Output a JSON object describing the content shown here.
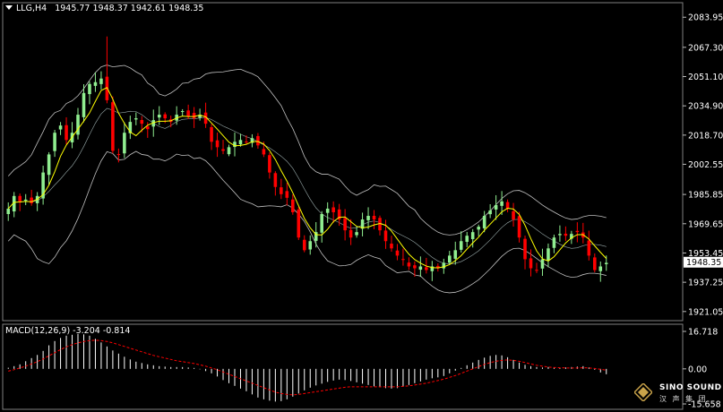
{
  "header": {
    "symbol": "LLG,H4",
    "ohlc": "1945.77 1948.37 1942.61 1948.35"
  },
  "macd": {
    "label": "MACD(12,26,9) -3.204 -0.814",
    "axis_ticks": [
      "16.718",
      "0.00",
      "-15.658"
    ]
  },
  "logo": {
    "name": "SINO SOUND",
    "subtitle": "汉 声 集 团"
  },
  "colors": {
    "background": "#000000",
    "bull": "#90EE90",
    "bear": "#FF0000",
    "ma": "#FFFF00",
    "bands": "#C0C0C0",
    "signal": "#FF0000",
    "histogram": "#FFFFFF"
  },
  "chart_data": {
    "type": "candlestick",
    "price_axis": {
      "ticks": [
        "2083.95",
        "2067.30",
        "2051.10",
        "2034.90",
        "2018.70",
        "2002.55",
        "1985.85",
        "1969.65",
        "1953.45",
        "1937.25",
        "1921.05"
      ],
      "current": "1948.35",
      "range": [
        1916.0,
        2092.0
      ]
    },
    "series_close": [
      1978,
      1985,
      1982,
      1983,
      1981,
      1985,
      1998,
      2008,
      2020,
      2024,
      2016,
      2020,
      2030,
      2042,
      2047,
      2048,
      2050,
      2038,
      2010,
      2008,
      2020,
      2026,
      2028,
      2025,
      2022,
      2027,
      2030,
      2028,
      2026,
      2030,
      2032,
      2029,
      2028,
      2030,
      2025,
      2015,
      2012,
      2010,
      2012,
      2015,
      2016,
      2015,
      2017,
      2013,
      2008,
      1998,
      1990,
      1986,
      1984,
      1976,
      1962,
      1955,
      1960,
      1965,
      1975,
      1978,
      1976,
      1972,
      1966,
      1962,
      1965,
      1972,
      1974,
      1972,
      1966,
      1960,
      1956,
      1952,
      1950,
      1946,
      1945,
      1946,
      1944,
      1946,
      1945,
      1948,
      1952,
      1955,
      1960,
      1963,
      1965,
      1968,
      1974,
      1977,
      1980,
      1982,
      1978,
      1972,
      1962,
      1950,
      1945,
      1944,
      1950,
      1956,
      1962,
      1964,
      1963,
      1964,
      1965,
      1962,
      1952,
      1944,
      1946,
      1948
    ],
    "band_width": [
      18,
      18,
      20,
      22,
      26,
      32,
      36,
      40,
      40,
      38,
      38,
      36,
      34,
      32,
      30,
      28,
      26,
      24,
      24,
      26,
      26,
      24,
      22,
      22,
      20,
      20,
      18,
      18,
      18,
      18,
      20,
      20,
      22,
      22,
      24,
      26,
      28,
      30,
      32,
      34,
      36,
      36,
      36,
      36,
      34,
      32,
      30,
      28,
      24,
      22,
      20,
      18,
      18,
      20,
      22,
      24,
      24,
      24,
      22,
      20,
      18,
      18,
      18,
      20,
      20,
      22,
      22,
      22,
      20,
      18,
      18,
      16,
      16,
      16,
      16,
      16,
      16,
      16,
      16,
      16,
      16,
      16,
      16,
      16,
      16,
      16,
      16,
      16,
      16,
      16,
      16,
      16,
      16,
      16,
      16,
      16,
      16,
      16,
      16,
      16,
      16,
      16,
      16,
      16
    ],
    "macd_histogram": [
      0.5,
      1.2,
      2.0,
      3.4,
      4.8,
      6.2,
      8.0,
      10.5,
      12.4,
      13.8,
      14.8,
      15.2,
      15.6,
      15.4,
      14.8,
      13.4,
      11.8,
      10.0,
      8.2,
      6.8,
      5.4,
      4.2,
      3.2,
      2.6,
      2.0,
      1.6,
      1.2,
      1.0,
      0.8,
      0.8,
      0.8,
      0.6,
      0.4,
      -0.2,
      -1.0,
      -2.0,
      -3.4,
      -5.0,
      -6.4,
      -7.6,
      -8.8,
      -10.0,
      -11.4,
      -12.8,
      -13.6,
      -14.2,
      -14.6,
      -14.4,
      -13.6,
      -12.4,
      -11.0,
      -9.6,
      -8.4,
      -7.4,
      -6.6,
      -5.8,
      -5.2,
      -4.8,
      -5.0,
      -5.4,
      -6.0,
      -6.6,
      -7.2,
      -7.8,
      -8.2,
      -8.6,
      -8.8,
      -8.6,
      -8.0,
      -7.2,
      -6.4,
      -5.6,
      -4.8,
      -4.2,
      -3.8,
      -3.2,
      -2.0,
      -0.8,
      0.4,
      1.6,
      2.8,
      4.0,
      5.0,
      5.8,
      6.2,
      6.0,
      5.2,
      4.0,
      2.8,
      1.8,
      1.2,
      0.8,
      0.6,
      0.8,
      0.6,
      0.4,
      0.6,
      0.8,
      1.0,
      1.2,
      0.6,
      -0.4,
      -1.6,
      -2.4
    ],
    "macd_signal": [
      -1.0,
      -0.4,
      0.4,
      1.2,
      2.2,
      3.2,
      4.4,
      5.8,
      7.2,
      8.6,
      9.8,
      10.8,
      11.6,
      12.2,
      12.6,
      12.8,
      12.6,
      12.2,
      11.6,
      10.8,
      10.0,
      9.2,
      8.4,
      7.6,
      6.8,
      6.0,
      5.4,
      4.8,
      4.2,
      3.6,
      3.2,
      2.8,
      2.4,
      1.8,
      1.2,
      0.4,
      -0.4,
      -1.4,
      -2.4,
      -3.4,
      -4.4,
      -5.4,
      -6.4,
      -7.4,
      -8.4,
      -9.4,
      -10.4,
      -11.0,
      -11.4,
      -11.6,
      -11.4,
      -11.0,
      -10.6,
      -10.2,
      -9.8,
      -9.4,
      -9.0,
      -8.6,
      -8.2,
      -8.0,
      -8.0,
      -8.0,
      -8.0,
      -8.0,
      -8.0,
      -8.0,
      -8.0,
      -8.0,
      -7.8,
      -7.6,
      -7.2,
      -6.8,
      -6.4,
      -5.8,
      -5.2,
      -4.6,
      -3.8,
      -3.0,
      -2.0,
      -1.0,
      0.0,
      1.0,
      2.0,
      2.8,
      3.4,
      3.8,
      4.0,
      3.8,
      3.4,
      2.8,
      2.2,
      1.6,
      1.2,
      0.8,
      0.6,
      0.5,
      0.4,
      0.4,
      0.4,
      0.5,
      0.4,
      0.2,
      -0.2,
      -0.6
    ],
    "macd_range": [
      -15.658,
      16.718
    ]
  }
}
